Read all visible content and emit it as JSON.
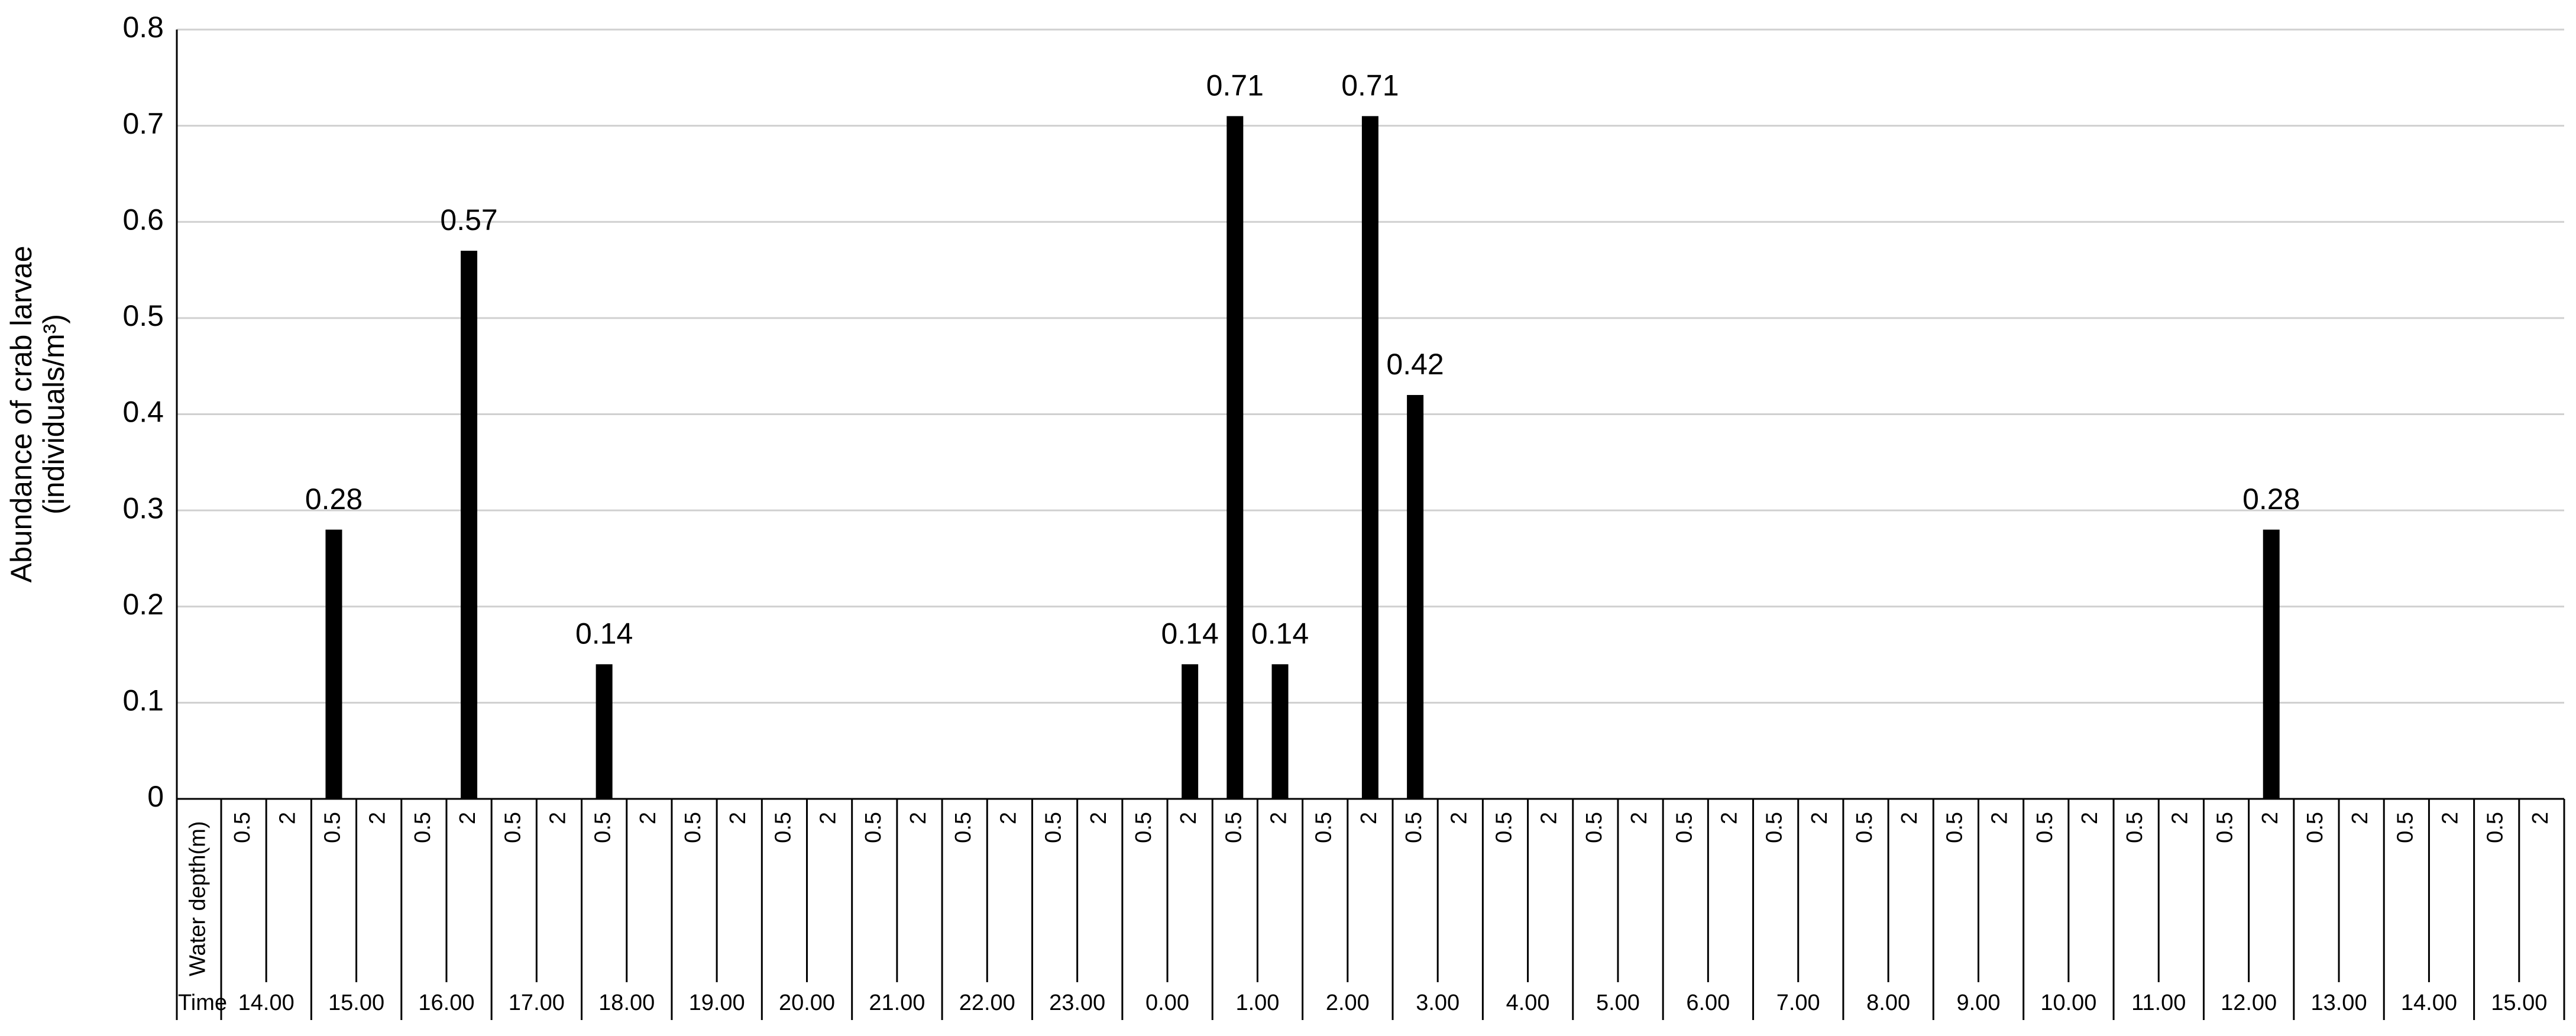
{
  "chart_data": {
    "type": "bar",
    "y_label": [
      "Abundance of crab larvae",
      "(individuals/m³)"
    ],
    "level_labels": [
      "Water depth(m)",
      "Time"
    ],
    "categories": [
      "0.5",
      "2",
      "0.5",
      "2",
      "0.5",
      "2",
      "0.5",
      "2",
      "0.5",
      "2",
      "0.5",
      "2",
      "0.5",
      "2",
      "0.5",
      "2",
      "0.5",
      "2",
      "0.5",
      "2",
      "0.5",
      "2",
      "0.5",
      "2",
      "0.5",
      "2",
      "0.5",
      "2",
      "0.5",
      "2",
      "0.5",
      "2",
      "0.5",
      "2",
      "0.5",
      "2",
      "0.5",
      "2",
      "0.5",
      "2",
      "0.5",
      "2",
      "0.5",
      "2",
      "0.5",
      "2",
      "0.5",
      "2",
      "0.5",
      "2",
      "0.5",
      "2"
    ],
    "groups": [
      "14.00",
      "15.00",
      "16.00",
      "17.00",
      "18.00",
      "19.00",
      "20.00",
      "21.00",
      "22.00",
      "23.00",
      "0.00",
      "1.00",
      "2.00",
      "3.00",
      "4.00",
      "5.00",
      "6.00",
      "7.00",
      "8.00",
      "9.00",
      "10.00",
      "11.00",
      "12.00",
      "13.00",
      "14.00",
      "15.00"
    ],
    "values": [
      0,
      0,
      0.28,
      0,
      0,
      0.57,
      0,
      0,
      0.14,
      0,
      0,
      0,
      0,
      0,
      0,
      0,
      0,
      0,
      0,
      0,
      0,
      0.14,
      0.71,
      0.14,
      0,
      0.71,
      0.42,
      0,
      0,
      0,
      0,
      0,
      0,
      0,
      0,
      0,
      0,
      0,
      0,
      0,
      0,
      0,
      0,
      0,
      0,
      0.28,
      0,
      0,
      0,
      0,
      0,
      0
    ],
    "color": "#000000",
    "ylim": [
      0,
      0.8
    ],
    "yticks": [
      0,
      0.1,
      0.2,
      0.3,
      0.4,
      0.5,
      0.6,
      0.7,
      0.8
    ],
    "grid": true
  }
}
